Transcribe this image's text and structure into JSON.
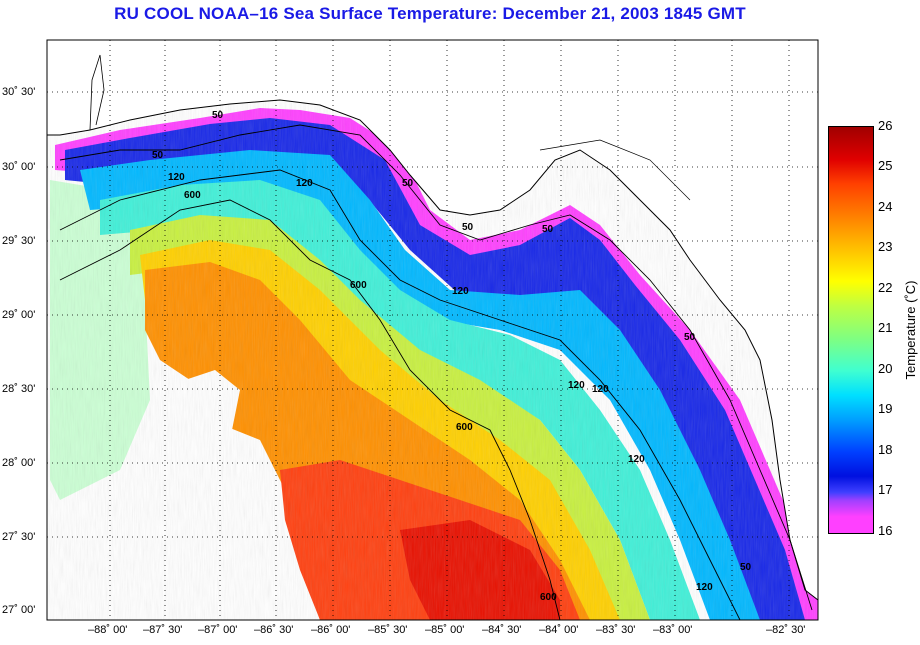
{
  "title": "RU COOL  NOAA–16  Sea Surface Temperature:  December 21, 2003 1845 GMT",
  "latitude_labels": [
    "30˚ 30'",
    "30˚ 00'",
    "29˚ 30'",
    "29˚ 00'",
    "28˚ 30'",
    "28˚ 00'",
    "27˚ 30'",
    "27˚ 00'"
  ],
  "longitude_labels": [
    "–88˚ 00'",
    "–87˚ 30'",
    "–87˚ 00'",
    "–86˚ 30'",
    "–86˚ 00'",
    "–85˚ 30'",
    "–85˚ 00'",
    "–84˚ 30'",
    "–84˚ 00'",
    "–83˚ 30'",
    "–83˚ 00'",
    "–82˚ 30'"
  ],
  "colorbar": {
    "axis_label": "Temperature (˚C)",
    "ticks": [
      "26",
      "25",
      "24",
      "23",
      "22",
      "21",
      "20",
      "19",
      "18",
      "17",
      "16"
    ],
    "min": 16,
    "max": 26
  },
  "contour_labels": [
    "50",
    "50",
    "120",
    "600",
    "120",
    "50",
    "50",
    "600",
    "120",
    "120",
    "120",
    "600",
    "120",
    "50",
    "120",
    "600",
    "50",
    "50"
  ]
}
